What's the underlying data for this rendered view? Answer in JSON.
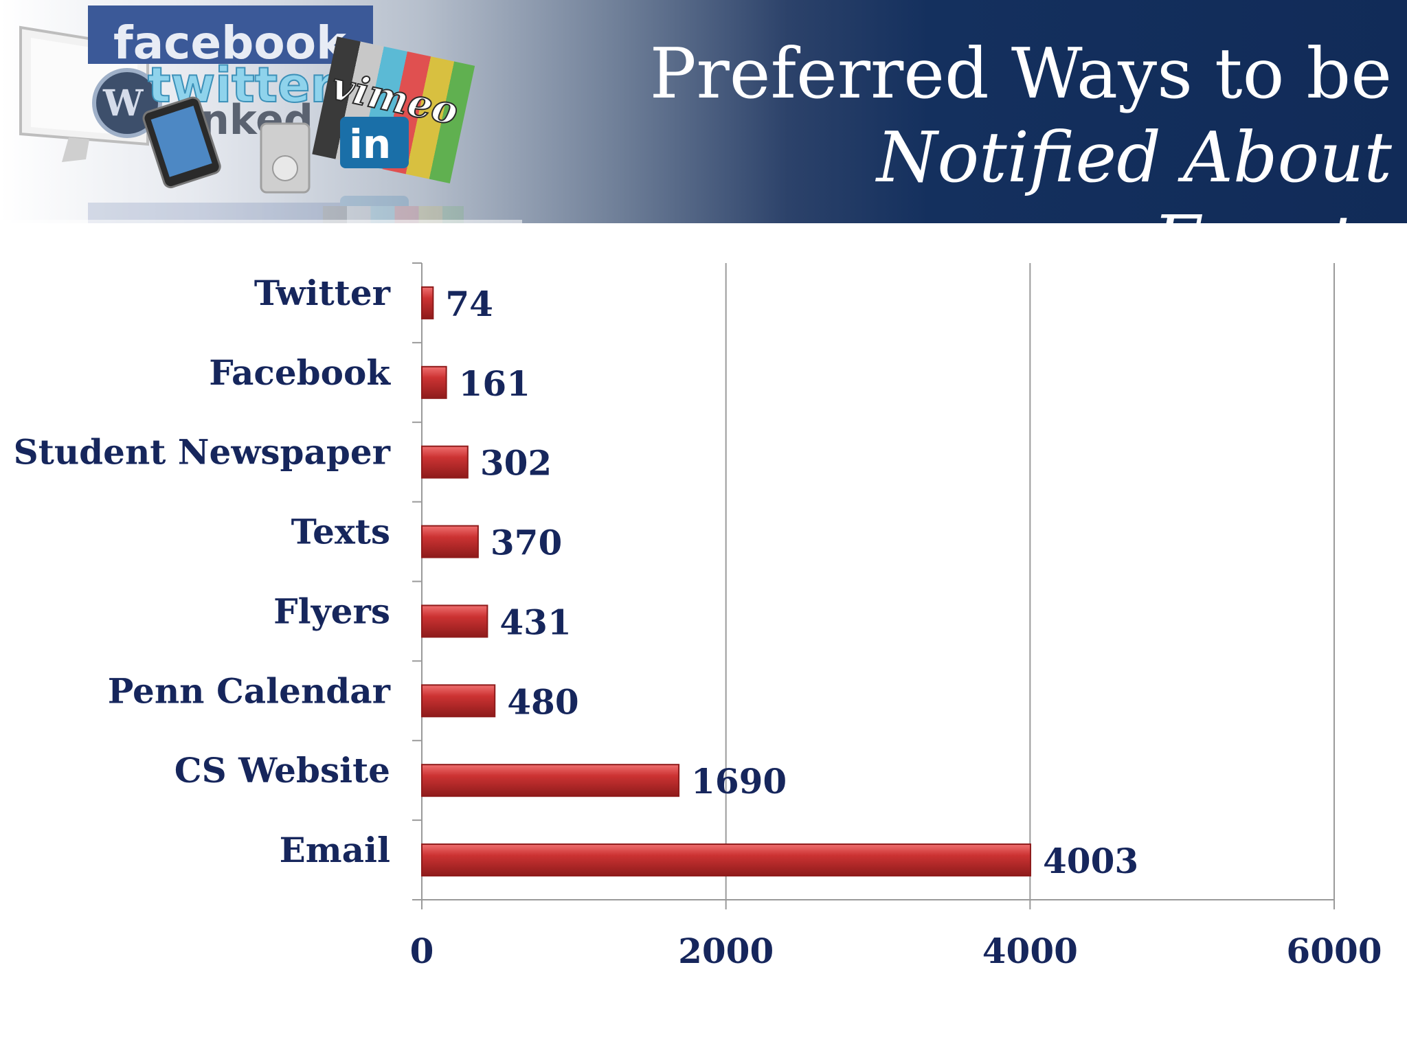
{
  "slide": {
    "title_line1": "Preferred Ways to be",
    "title_line2": "Notified About Events"
  },
  "collage": {
    "icon": "social-media-logos-collage",
    "logo_texts": [
      "facebook",
      "twitter",
      "linked",
      "in",
      "vimeo"
    ]
  },
  "colors": {
    "banner_dark": "#112b58",
    "bar": "#cc3333",
    "bar_highlight": "#f07070",
    "bar_shadow": "#8e1b1b",
    "text": "#16265c",
    "gridline": "#9a9a9a"
  },
  "chart_data": {
    "type": "bar",
    "orientation": "horizontal",
    "categories": [
      "Twitter",
      "Facebook",
      "Student Newspaper",
      "Texts",
      "Flyers",
      "Penn Calendar",
      "CS Website",
      "Email"
    ],
    "values": [
      74,
      161,
      302,
      370,
      431,
      480,
      1690,
      4003
    ],
    "xlim": [
      0,
      6000
    ],
    "xticks": [
      0,
      2000,
      4000,
      6000
    ],
    "title": "",
    "xlabel": "",
    "ylabel": "",
    "grid": "vertical",
    "legend": "none",
    "data_labels": true
  }
}
